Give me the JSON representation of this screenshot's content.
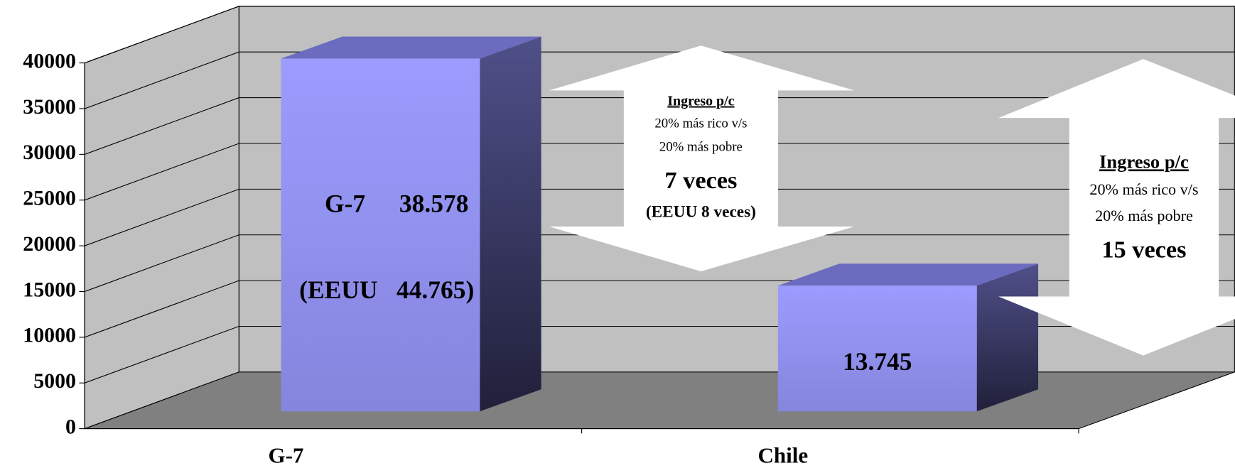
{
  "chart_data": {
    "type": "bar",
    "categories": [
      "G-7",
      "Chile"
    ],
    "values": [
      38578,
      13745
    ],
    "value_labels": [
      "38.578",
      "13.745"
    ],
    "bar_note": "(EEUU   44.765)",
    "color": "#9999ff",
    "ylim": [
      0,
      40000
    ],
    "yticks": [
      0,
      5000,
      10000,
      15000,
      20000,
      25000,
      30000,
      35000,
      40000
    ],
    "grid": true,
    "annotations": [
      {
        "lines": [
          "Ingreso p/c",
          "20% más rico v/s",
          "20% más pobre",
          "7 veces",
          "(EEUU 8 veces)"
        ]
      },
      {
        "lines": [
          "Ingreso p/c",
          "20% más rico v/s",
          "20% más pobre",
          "15 veces"
        ]
      }
    ]
  }
}
